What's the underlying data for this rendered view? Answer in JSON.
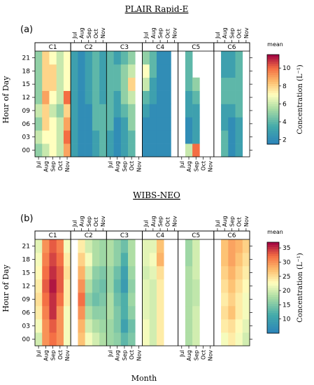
{
  "chart_data": [
    {
      "type": "heatmap",
      "panel_label": "(a)",
      "title": "PLAIR Rapid-E",
      "ylabel": "Hour of Day",
      "hours": [
        "00",
        "03",
        "06",
        "09",
        "12",
        "15",
        "18",
        "21"
      ],
      "months": [
        "Jul",
        "Aug",
        "Sep",
        "Oct",
        "Nov"
      ],
      "facets": [
        "C1",
        "C2",
        "C3",
        "C4",
        "C5",
        "C6"
      ],
      "colorbar": {
        "title": "mean",
        "label": "Concentration (L⁻¹)",
        "ticks": [
          "2",
          "4",
          "6",
          "8",
          "10"
        ],
        "range": [
          1.5,
          11.5
        ]
      },
      "values": {
        "C1": [
          [
            5,
            6,
            7,
            6,
            9
          ],
          [
            6,
            7,
            7,
            6,
            10
          ],
          [
            5,
            8,
            7,
            6,
            9
          ],
          [
            6,
            8,
            6,
            5,
            8
          ],
          [
            5,
            9,
            7,
            6,
            10
          ],
          [
            5,
            8,
            8,
            6,
            7
          ],
          [
            5,
            8,
            8,
            6,
            7
          ],
          [
            5,
            8,
            7,
            6,
            7
          ]
        ],
        "C2": [
          [
            3,
            2,
            2,
            3,
            4
          ],
          [
            3,
            2,
            2,
            3,
            4
          ],
          [
            3,
            2,
            2,
            4,
            4
          ],
          [
            3,
            2,
            2,
            4,
            4
          ],
          [
            3,
            2,
            3,
            4,
            3
          ],
          [
            3,
            2,
            3,
            4,
            3
          ],
          [
            3,
            2,
            3,
            4,
            3
          ],
          [
            3,
            2,
            3,
            4,
            3
          ]
        ],
        "C3": [
          [
            3,
            2,
            3,
            4,
            null
          ],
          [
            3,
            2,
            3,
            4,
            null
          ],
          [
            4,
            2,
            3,
            5,
            null
          ],
          [
            4,
            3,
            4,
            5,
            null
          ],
          [
            4,
            3,
            5,
            6,
            null
          ],
          [
            4,
            4,
            5,
            8,
            null
          ],
          [
            4,
            4,
            5,
            6,
            null
          ],
          [
            4,
            3,
            4,
            5,
            null
          ]
        ],
        "C4": [
          [
            2,
            2,
            2,
            2,
            null
          ],
          [
            2,
            2,
            2,
            2,
            null
          ],
          [
            2,
            2,
            2,
            2,
            null
          ],
          [
            3,
            2,
            2,
            2,
            null
          ],
          [
            4,
            3,
            2,
            2,
            null
          ],
          [
            6,
            3,
            2,
            2,
            null
          ],
          [
            7,
            4,
            2,
            2,
            null
          ],
          [
            5,
            4,
            2,
            2,
            null
          ]
        ],
        "C5": [
          [
            null,
            6,
            10,
            null,
            null
          ],
          [
            null,
            2,
            3,
            null,
            null
          ],
          [
            null,
            2,
            3,
            null,
            null
          ],
          [
            null,
            3,
            3,
            null,
            null
          ],
          [
            null,
            3,
            4,
            null,
            null
          ],
          [
            null,
            4,
            5,
            null,
            null
          ],
          [
            null,
            4,
            null,
            null,
            null
          ],
          [
            null,
            4,
            null,
            null,
            null
          ]
        ],
        "C6": [
          [
            null,
            4,
            2,
            3,
            null
          ],
          [
            null,
            4,
            2,
            3,
            null
          ],
          [
            null,
            3,
            2,
            3,
            null
          ],
          [
            null,
            3,
            3,
            4,
            null
          ],
          [
            null,
            4,
            4,
            4,
            null
          ],
          [
            null,
            4,
            4,
            4,
            null
          ],
          [
            null,
            3,
            3,
            4,
            null
          ],
          [
            null,
            3,
            3,
            4,
            null
          ]
        ]
      }
    },
    {
      "type": "heatmap",
      "panel_label": "(b)",
      "title": "WIBS-NEO",
      "xlabel": "Month",
      "ylabel": "Hour of Day",
      "hours": [
        "00",
        "03",
        "06",
        "09",
        "12",
        "15",
        "18",
        "21"
      ],
      "months": [
        "Jul",
        "Aug",
        "Sep",
        "Oct",
        "Nov"
      ],
      "facets": [
        "C1",
        "C2",
        "C3",
        "C4",
        "C5",
        "C6"
      ],
      "colorbar": {
        "title": "mean",
        "label": "Concentration (L⁻¹)",
        "ticks": [
          "10",
          "15",
          "20",
          "25",
          "30",
          "35"
        ],
        "range": [
          5,
          37
        ]
      },
      "values": {
        "C1": [
          [
            20,
            30,
            32,
            30,
            22
          ],
          [
            22,
            30,
            33,
            30,
            22
          ],
          [
            24,
            31,
            35,
            30,
            22
          ],
          [
            25,
            32,
            35,
            32,
            24
          ],
          [
            24,
            33,
            36,
            33,
            24
          ],
          [
            23,
            32,
            35,
            33,
            25
          ],
          [
            22,
            31,
            34,
            32,
            24
          ],
          [
            21,
            30,
            33,
            31,
            22
          ]
        ],
        "C2": [
          [
            null,
            27,
            22,
            20,
            18
          ],
          [
            null,
            28,
            20,
            18,
            17
          ],
          [
            null,
            30,
            18,
            16,
            16
          ],
          [
            null,
            32,
            16,
            14,
            15
          ],
          [
            null,
            30,
            18,
            15,
            14
          ],
          [
            null,
            28,
            20,
            16,
            15
          ],
          [
            null,
            26,
            22,
            18,
            17
          ],
          [
            null,
            24,
            20,
            18,
            17
          ]
        ],
        "C3": [
          [
            17,
            16,
            13,
            15,
            null
          ],
          [
            17,
            15,
            10,
            14,
            null
          ],
          [
            18,
            15,
            12,
            16,
            null
          ],
          [
            18,
            14,
            12,
            17,
            null
          ],
          [
            17,
            13,
            9,
            16,
            null
          ],
          [
            17,
            14,
            10,
            17,
            null
          ],
          [
            18,
            16,
            12,
            18,
            null
          ],
          [
            18,
            16,
            14,
            18,
            null
          ]
        ],
        "C4": [
          [
            22,
            20,
            24,
            null,
            null
          ],
          [
            22,
            20,
            24,
            null,
            null
          ],
          [
            21,
            20,
            24,
            null,
            null
          ],
          [
            21,
            20,
            24,
            null,
            null
          ],
          [
            21,
            20,
            24,
            null,
            null
          ],
          [
            20,
            21,
            25,
            null,
            null
          ],
          [
            21,
            22,
            28,
            null,
            null
          ],
          [
            21,
            21,
            27,
            null,
            null
          ]
        ],
        "C5": [
          [
            null,
            18,
            20,
            null,
            null
          ],
          [
            null,
            18,
            20,
            null,
            null
          ],
          [
            null,
            18,
            20,
            null,
            null
          ],
          [
            null,
            18,
            19,
            null,
            null
          ],
          [
            null,
            18,
            19,
            null,
            null
          ],
          [
            null,
            18,
            20,
            null,
            null
          ],
          [
            null,
            17,
            20,
            null,
            null
          ],
          [
            null,
            17,
            20,
            null,
            null
          ]
        ],
        "C6": [
          [
            null,
            22,
            24,
            22,
            20
          ],
          [
            null,
            24,
            25,
            23,
            21
          ],
          [
            null,
            25,
            27,
            24,
            22
          ],
          [
            null,
            24,
            26,
            24,
            22
          ],
          [
            null,
            25,
            27,
            25,
            23
          ],
          [
            null,
            26,
            28,
            26,
            24
          ],
          [
            null,
            27,
            29,
            27,
            25
          ],
          [
            null,
            27,
            29,
            28,
            26
          ]
        ]
      }
    }
  ]
}
